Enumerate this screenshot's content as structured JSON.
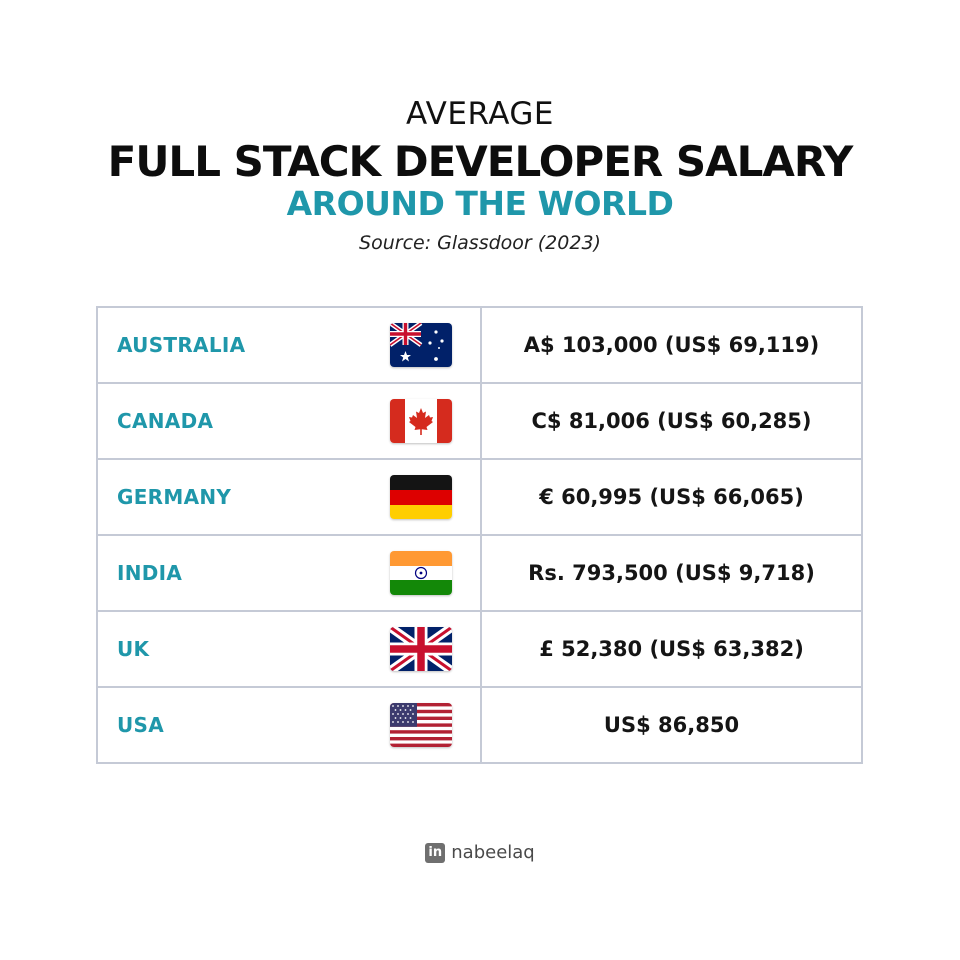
{
  "header": {
    "kicker": "AVERAGE",
    "title": "FULL STACK DEVELOPER SALARY",
    "subtitle": "AROUND THE WORLD",
    "source": "Source: Glassdoor (2023)"
  },
  "rows": [
    {
      "country": "AUSTRALIA",
      "flag": "australia-flag-icon",
      "salary": "A$ 103,000 (US$ 69,119)"
    },
    {
      "country": "CANADA",
      "flag": "canada-flag-icon",
      "salary": "C$ 81,006 (US$ 60,285)"
    },
    {
      "country": "GERMANY",
      "flag": "germany-flag-icon",
      "salary": "€ 60,995 (US$ 66,065)"
    },
    {
      "country": "INDIA",
      "flag": "india-flag-icon",
      "salary": "Rs. 793,500 (US$ 9,718)"
    },
    {
      "country": "UK",
      "flag": "uk-flag-icon",
      "salary": "£ 52,380 (US$ 63,382)"
    },
    {
      "country": "USA",
      "flag": "usa-flag-icon",
      "salary": "US$ 86,850"
    }
  ],
  "footer": {
    "logo_icon": "linkedin-icon",
    "logo_text": "in",
    "handle": "nabeelaq"
  },
  "colors": {
    "accent": "#1f97aa",
    "text": "#151515",
    "border": "#c5cad6"
  }
}
